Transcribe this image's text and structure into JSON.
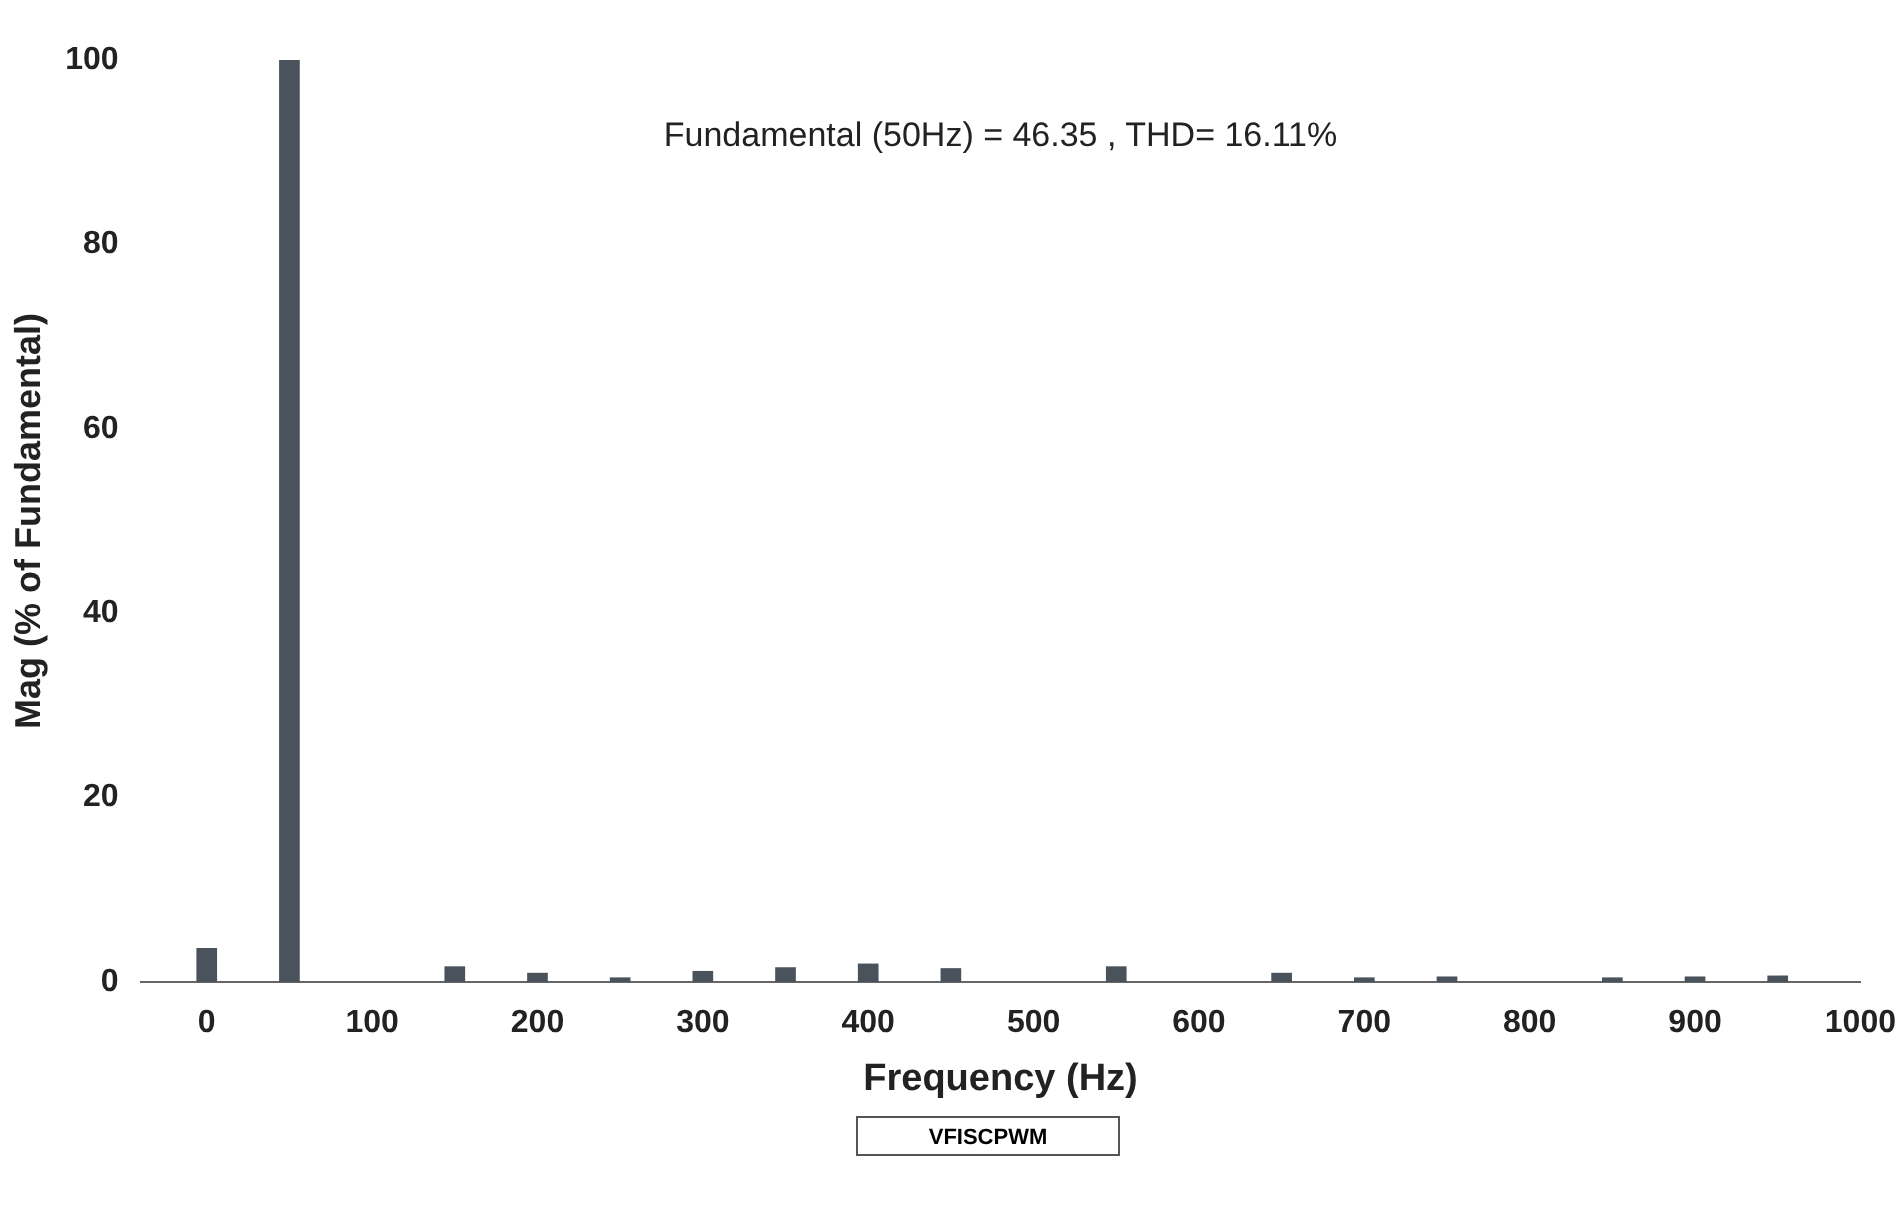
{
  "chart_data": {
    "type": "bar",
    "xlabel": "Frequency (Hz)",
    "ylabel": "Mag (% of Fundamental)",
    "x": [
      0,
      50,
      100,
      150,
      200,
      250,
      300,
      350,
      400,
      450,
      500,
      550,
      600,
      650,
      700,
      750,
      800,
      850,
      900,
      950
    ],
    "values": [
      3.7,
      100,
      0,
      1.7,
      1,
      0.5,
      1.2,
      1.6,
      2,
      1.5,
      0,
      1.7,
      0,
      1,
      0.5,
      0.6,
      0,
      0.5,
      0.6,
      0.7
    ],
    "color": "#4a525c",
    "xlim": [
      -40,
      1000
    ],
    "xticks": [
      0,
      100,
      200,
      300,
      400,
      500,
      600,
      700,
      800,
      900,
      1000
    ],
    "ylim": [
      0,
      100
    ],
    "yticks": [
      0,
      20,
      40,
      60,
      80,
      100
    ],
    "grid": false,
    "annotations": [
      "Fundamental (50Hz) = 46.35 , THD= 16.11%",
      "VFISCPWM"
    ]
  }
}
